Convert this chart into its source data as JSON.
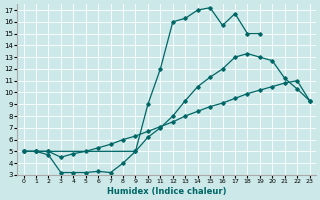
{
  "xlabel": "Humidex (Indice chaleur)",
  "bg_color": "#cce8e8",
  "grid_color": "#ffffff",
  "line_color": "#006666",
  "xlim": [
    -0.5,
    23.5
  ],
  "ylim": [
    3,
    17.5
  ],
  "xticks": [
    0,
    1,
    2,
    3,
    4,
    5,
    6,
    7,
    8,
    9,
    10,
    11,
    12,
    13,
    14,
    15,
    16,
    17,
    18,
    19,
    20,
    21,
    22,
    23
  ],
  "yticks": [
    3,
    4,
    5,
    6,
    7,
    8,
    9,
    10,
    11,
    12,
    13,
    14,
    15,
    16,
    17
  ],
  "line1_x": [
    0,
    1,
    2,
    9,
    10,
    11,
    12,
    13,
    14,
    15,
    16,
    17,
    18,
    19
  ],
  "line1_y": [
    5,
    5,
    5,
    5,
    9,
    12,
    16,
    16.3,
    17,
    17.2,
    15.7,
    16.7,
    15,
    15
  ],
  "line2_x": [
    0,
    1,
    2,
    3,
    4,
    5,
    6,
    7,
    8,
    9,
    10,
    11,
    12,
    13,
    14,
    15,
    16,
    17,
    18,
    19,
    20,
    21,
    22,
    23
  ],
  "line2_y": [
    5,
    5,
    4.7,
    3.2,
    3.2,
    3.2,
    3.3,
    3.2,
    4.0,
    5.0,
    6.2,
    7.0,
    8.0,
    9.3,
    10.5,
    11.3,
    12.0,
    13.0,
    13.3,
    13.0,
    12.7,
    11.2,
    10.3,
    9.3
  ],
  "line3_x": [
    0,
    1,
    2,
    3,
    4,
    5,
    6,
    7,
    8,
    9,
    10,
    11,
    12,
    13,
    14,
    15,
    16,
    17,
    18,
    19,
    20,
    21,
    22,
    23
  ],
  "line3_y": [
    5,
    5,
    5.0,
    4.5,
    4.8,
    5.0,
    5.3,
    5.6,
    6.0,
    6.3,
    6.7,
    7.1,
    7.5,
    8.0,
    8.4,
    8.8,
    9.1,
    9.5,
    9.9,
    10.2,
    10.5,
    10.8,
    11.0,
    9.3
  ]
}
